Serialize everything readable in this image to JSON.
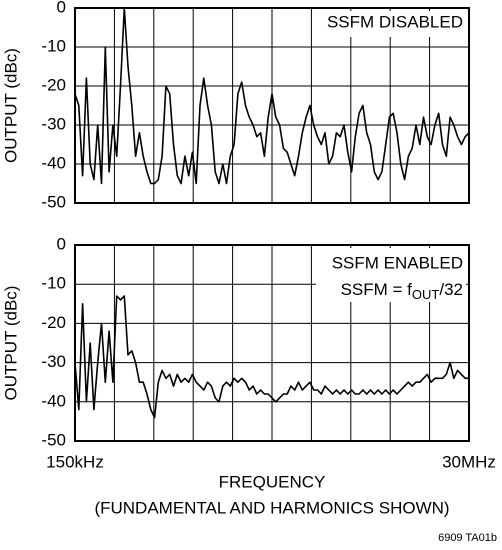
{
  "chart_data": [
    {
      "type": "line",
      "ylabel": "OUTPUT (dBc)",
      "annotation": "SSFM DISABLED",
      "ylim": [
        -50,
        0
      ],
      "yticks": [
        0,
        -10,
        -20,
        -30,
        -40,
        -50
      ],
      "grid": true,
      "xgrid_divisions": 10,
      "color": "#000000",
      "values": [
        -22,
        -25,
        -43,
        -18,
        -40,
        -44,
        -30,
        -45,
        -10,
        -42,
        -30,
        -38,
        -20,
        0,
        -15,
        -25,
        -38,
        -32,
        -38,
        -42,
        -45,
        -45,
        -44,
        -38,
        -20,
        -22,
        -35,
        -43,
        -45,
        -38,
        -43,
        -37,
        -45,
        -25,
        -18,
        -25,
        -30,
        -42,
        -45,
        -40,
        -45,
        -38,
        -35,
        -22,
        -19,
        -25,
        -28,
        -30,
        -33,
        -32,
        -38,
        -28,
        -22,
        -28,
        -30,
        -36,
        -37,
        -40,
        -43,
        -38,
        -32,
        -28,
        -25,
        -30,
        -33,
        -35,
        -32,
        -40,
        -38,
        -32,
        -33,
        -30,
        -37,
        -42,
        -33,
        -27,
        -25,
        -32,
        -35,
        -42,
        -44,
        -42,
        -35,
        -28,
        -27,
        -32,
        -40,
        -44,
        -38,
        -36,
        -30,
        -35,
        -28,
        -33,
        -35,
        -30,
        -27,
        -35,
        -38,
        -28,
        -30,
        -33,
        -35,
        -33,
        -32
      ]
    },
    {
      "type": "line",
      "ylabel": "OUTPUT (dBc)",
      "annotation": "SSFM ENABLED",
      "annotation2": {
        "text": "SSFM = f",
        "sub": "OUT",
        "tail": "/32"
      },
      "ylim": [
        -50,
        0
      ],
      "yticks": [
        0,
        -10,
        -20,
        -30,
        -40,
        -50
      ],
      "grid": true,
      "xgrid_divisions": 10,
      "color": "#000000",
      "xtick_labels": [
        "150kHz",
        "30MHz"
      ],
      "xlabel": "FREQUENCY",
      "xlabel2": "(FUNDAMENTAL AND HARMONICS SHOWN)",
      "note": "6909 TA01b",
      "values": [
        -30,
        -42,
        -15,
        -40,
        -25,
        -42,
        -30,
        -20,
        -35,
        -22,
        -35,
        -13,
        -14,
        -13,
        -28,
        -27,
        -30,
        -35,
        -35,
        -38,
        -42,
        -44,
        -35,
        -32,
        -34,
        -33,
        -36,
        -33,
        -35,
        -34,
        -35,
        -33,
        -35,
        -36,
        -37,
        -35,
        -36,
        -39,
        -40,
        -36,
        -35,
        -36,
        -34,
        -35,
        -34,
        -35,
        -37,
        -36,
        -38,
        -37,
        -38,
        -38,
        -39,
        -40,
        -39,
        -38,
        -38,
        -36,
        -37,
        -35,
        -37,
        -36,
        -35,
        -37,
        -37,
        -38,
        -36,
        -37,
        -38,
        -37,
        -38,
        -37,
        -38,
        -37,
        -38,
        -38,
        -37,
        -38,
        -37,
        -38,
        -37,
        -38,
        -37,
        -38,
        -37,
        -38,
        -37,
        -36,
        -35,
        -36,
        -35,
        -35,
        -34,
        -33,
        -35,
        -34,
        -34,
        -34,
        -33,
        -30,
        -34,
        -32,
        -33,
        -34,
        -34
      ]
    }
  ]
}
